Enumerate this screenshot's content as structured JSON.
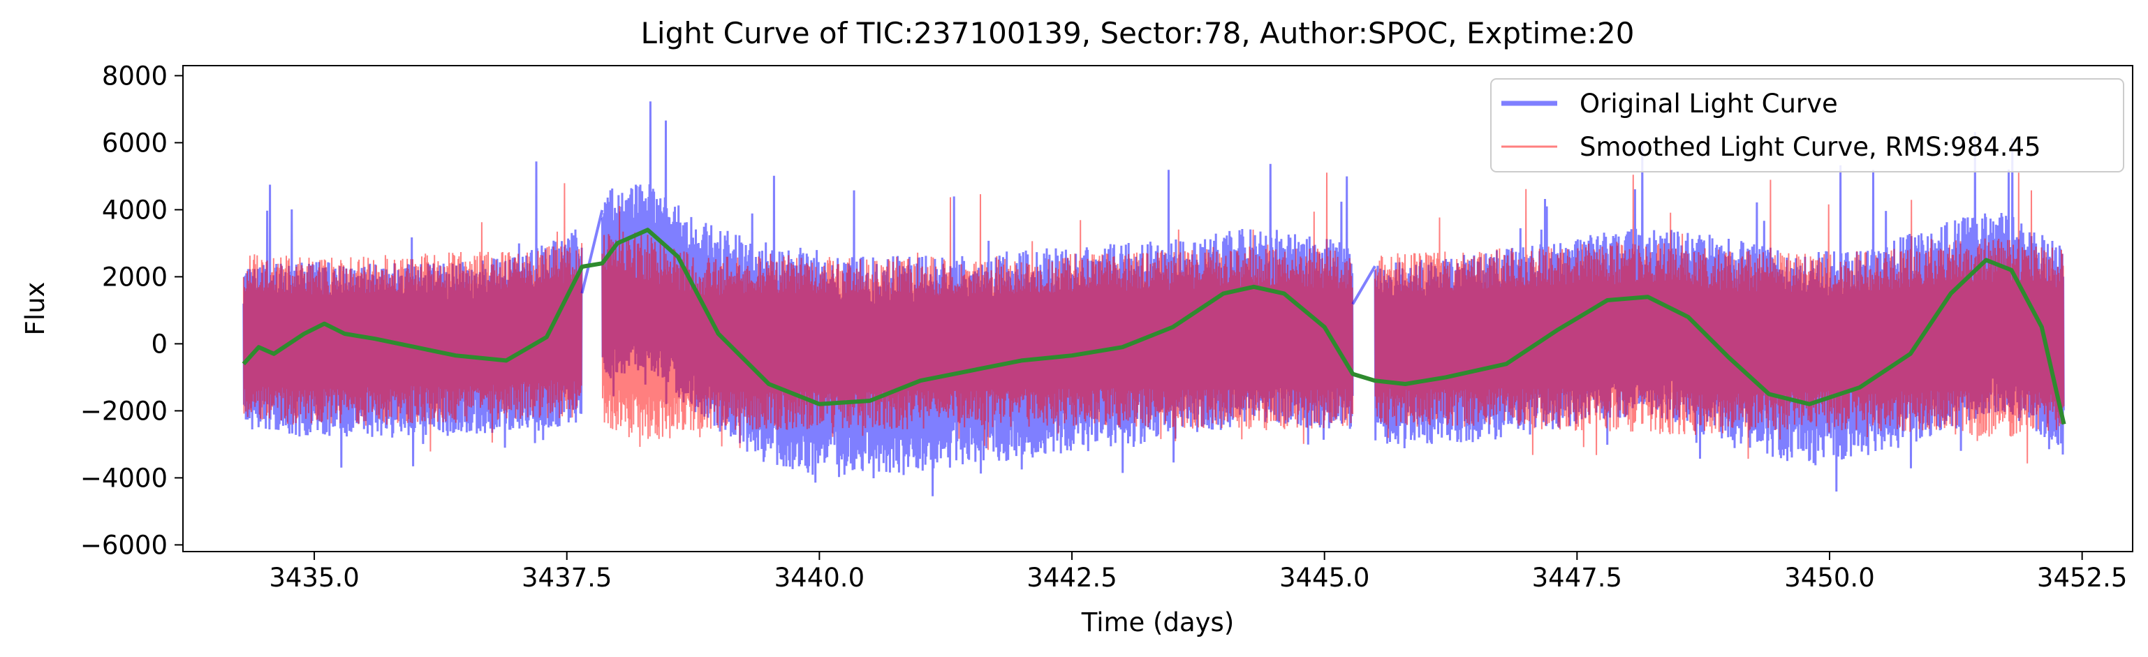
{
  "chart_data": {
    "type": "line",
    "title": "Light Curve of TIC:237100139, Sector:78, Author:SPOC, Exptime:20",
    "xlabel": "Time (days)",
    "ylabel": "Flux",
    "xlim": [
      3433.7,
      3453.0
    ],
    "ylim": [
      -6200,
      8300
    ],
    "xticks": [
      3435.0,
      3437.5,
      3440.0,
      3442.5,
      3445.0,
      3447.5,
      3450.0,
      3452.5
    ],
    "xtick_labels": [
      "3435.0",
      "3437.5",
      "3440.0",
      "3442.5",
      "3445.0",
      "3447.5",
      "3450.0",
      "3452.5"
    ],
    "yticks": [
      -6000,
      -4000,
      -2000,
      0,
      2000,
      4000,
      6000,
      8000
    ],
    "ytick_labels": [
      "−6000",
      "−4000",
      "−2000",
      "0",
      "2000",
      "4000",
      "6000",
      "8000"
    ],
    "grid": false,
    "legend_position": "top-right",
    "segments": [
      [
        3434.3,
        3437.65
      ],
      [
        3437.85,
        3445.28
      ],
      [
        3445.5,
        3452.32
      ]
    ],
    "series": [
      {
        "name": "Original Light Curve",
        "color": "#0000ff",
        "opacity": 0.5,
        "envelope": {
          "x": [
            3434.3,
            3435.0,
            3436.0,
            3437.0,
            3437.6,
            3437.9,
            3438.3,
            3438.8,
            3439.5,
            3440.5,
            3441.5,
            3442.5,
            3443.5,
            3444.3,
            3445.2,
            3445.6,
            3446.5,
            3447.5,
            3448.2,
            3449.0,
            3449.8,
            3450.5,
            3451.2,
            3451.7,
            3452.3
          ],
          "upper": [
            2300,
            2500,
            2400,
            2600,
            3600,
            4600,
            5000,
            3700,
            3000,
            2600,
            2700,
            2900,
            3100,
            3500,
            3100,
            2400,
            2700,
            3200,
            3500,
            3200,
            2700,
            3000,
            3700,
            4000,
            2900
          ],
          "lower": [
            -2600,
            -2800,
            -2800,
            -2700,
            -2400,
            -1200,
            -700,
            -2200,
            -3700,
            -4100,
            -3600,
            -3300,
            -2900,
            -2400,
            -2600,
            -3000,
            -3000,
            -2500,
            -2100,
            -3000,
            -3700,
            -3300,
            -2600,
            -2000,
            -3200
          ]
        }
      },
      {
        "name": "Smoothed Light Curve, RMS:984.45",
        "color": "#ff0000",
        "opacity": 0.5,
        "envelope": {
          "x": [
            3434.3,
            3435.0,
            3436.0,
            3437.0,
            3437.6,
            3437.9,
            3438.3,
            3438.8,
            3439.5,
            3440.5,
            3441.5,
            3442.5,
            3443.5,
            3444.3,
            3445.2,
            3445.6,
            3446.5,
            3447.5,
            3448.2,
            3449.0,
            3449.8,
            3450.5,
            3451.2,
            3451.7,
            3452.3
          ],
          "upper": [
            2700,
            2600,
            2700,
            2800,
            3000,
            3500,
            3300,
            2600,
            2700,
            2600,
            2600,
            2700,
            2800,
            3000,
            2800,
            2700,
            2800,
            3000,
            3100,
            2800,
            2700,
            2800,
            3100,
            3200,
            2900
          ],
          "lower": [
            -2400,
            -2500,
            -2400,
            -2300,
            -2200,
            -2600,
            -3000,
            -2600,
            -2600,
            -2600,
            -2500,
            -2500,
            -2500,
            -2600,
            -2500,
            -2500,
            -2500,
            -2600,
            -2700,
            -2700,
            -2600,
            -2600,
            -2700,
            -2800,
            -2600
          ]
        }
      },
      {
        "name": "",
        "color": "#2e8b2e",
        "x": [
          3434.3,
          3434.45,
          3434.6,
          3434.9,
          3435.1,
          3435.3,
          3435.6,
          3436.0,
          3436.4,
          3436.9,
          3437.3,
          3437.65,
          3437.85,
          3438.0,
          3438.3,
          3438.6,
          3439.0,
          3439.5,
          3440.0,
          3440.5,
          3441.0,
          3441.5,
          3442.0,
          3442.5,
          3443.0,
          3443.5,
          3444.0,
          3444.3,
          3444.6,
          3445.0,
          3445.28,
          3445.5,
          3445.8,
          3446.2,
          3446.8,
          3447.3,
          3447.8,
          3448.2,
          3448.6,
          3449.0,
          3449.4,
          3449.8,
          3450.3,
          3450.8,
          3451.2,
          3451.55,
          3451.8,
          3452.1,
          3452.32
        ],
        "y": [
          -600,
          -100,
          -300,
          300,
          600,
          300,
          150,
          -100,
          -350,
          -500,
          200,
          2300,
          2400,
          3000,
          3400,
          2600,
          300,
          -1200,
          -1800,
          -1700,
          -1100,
          -800,
          -500,
          -350,
          -100,
          500,
          1500,
          1700,
          1500,
          500,
          -900,
          -1100,
          -1200,
          -1000,
          -600,
          400,
          1300,
          1400,
          800,
          -400,
          -1500,
          -1800,
          -1300,
          -300,
          1500,
          2500,
          2200,
          500,
          -2400
        ]
      }
    ]
  }
}
